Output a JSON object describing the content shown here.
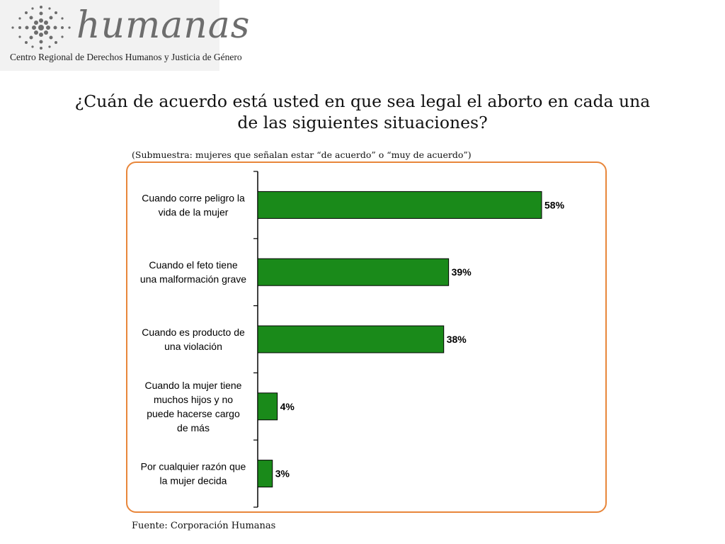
{
  "logo": {
    "name": "humanas",
    "subtitle": "Centro Regional de Derechos Humanos y Justicia de Género"
  },
  "header": {
    "title": "¿Cuán de acuerdo está usted en que sea legal el aborto en cada una de las siguientes situaciones?",
    "subtitle": "(Submuestra: mujeres que señalan estar “de acuerdo” o “muy de acuerdo”)"
  },
  "footer": {
    "source": "Fuente: Corporación Humanas"
  },
  "colors": {
    "bar": "#1a8a1a",
    "frame": "#e8863a"
  },
  "chart_data": {
    "type": "bar",
    "orientation": "horizontal",
    "categories": [
      [
        "Cuando corre peligro la",
        "vida de la mujer"
      ],
      [
        "Cuando el feto tiene",
        "una malformación grave"
      ],
      [
        "Cuando es producto de",
        "una violación"
      ],
      [
        "Cuando la mujer tiene",
        "muchos hijos y no",
        "puede hacerse cargo",
        "de más"
      ],
      [
        "Por cualquier razón que",
        "la mujer decida"
      ]
    ],
    "values": [
      58,
      39,
      38,
      4,
      3
    ],
    "data_labels": [
      "58%",
      "39%",
      "38%",
      "4%",
      "3%"
    ],
    "xlim": [
      0,
      70
    ],
    "grid": false,
    "legend": "none"
  }
}
